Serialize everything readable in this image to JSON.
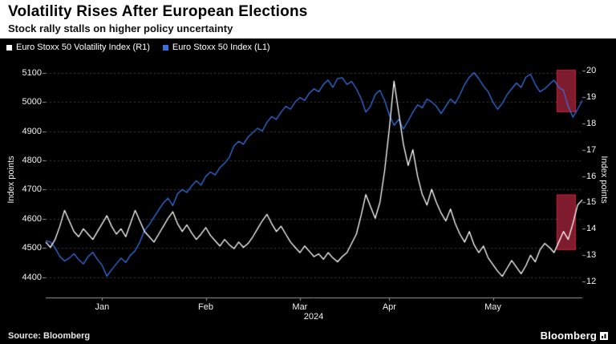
{
  "header": {
    "title": "Volatility Rises After European Elections",
    "subtitle": "Stock rally stalls on higher policy uncertainty"
  },
  "legend": [
    {
      "label": "Euro Stoxx 50 Volatility Index (R1)",
      "color": "#ffffff"
    },
    {
      "label": "Euro Stoxx 50 Index (L1)",
      "color": "#3671e0"
    }
  ],
  "footer": {
    "source": "Source: Bloomberg",
    "logo": "Bloomberg"
  },
  "chart_data": {
    "type": "line",
    "title": "Volatility Rises After European Elections",
    "subtitle": "Stock rally stalls on higher policy uncertainty",
    "x_axis": {
      "year_label": "2024",
      "month_labels": [
        "Jan",
        "Feb",
        "Mar",
        "Apr",
        "May"
      ],
      "month_label_indices": [
        12,
        34,
        54,
        73,
        95
      ]
    },
    "left_axis": {
      "title": "Index points",
      "ticks": [
        4400,
        4500,
        4600,
        4700,
        4800,
        4900,
        5000,
        5100
      ],
      "range": [
        4330,
        5135
      ]
    },
    "right_axis": {
      "title": "Index points",
      "ticks": [
        12,
        13,
        14,
        15,
        16,
        17,
        18,
        19,
        20
      ],
      "range": [
        11.4,
        20.3
      ]
    },
    "grid_color": "#3c3c3c",
    "axis_color": "#9b9b9b",
    "series": [
      {
        "name": "Euro Stoxx 50 Index (L1)",
        "axis": "left",
        "color": "#3671e0",
        "values": [
          4525,
          4520,
          4500,
          4470,
          4455,
          4465,
          4480,
          4460,
          4445,
          4470,
          4485,
          4460,
          4440,
          4403,
          4425,
          4445,
          4465,
          4450,
          4475,
          4490,
          4520,
          4560,
          4580,
          4605,
          4630,
          4654,
          4670,
          4645,
          4685,
          4700,
          4690,
          4712,
          4730,
          4715,
          4745,
          4760,
          4750,
          4775,
          4790,
          4810,
          4850,
          4865,
          4855,
          4880,
          4895,
          4910,
          4900,
          4930,
          4950,
          4940,
          4965,
          4985,
          4975,
          5000,
          5015,
          5005,
          5030,
          5045,
          5035,
          5060,
          5075,
          5050,
          5080,
          5083,
          5060,
          5070,
          5045,
          5012,
          4965,
          4985,
          5025,
          5040,
          5005,
          4955,
          4920,
          4940,
          4907,
          4935,
          4965,
          4990,
          4980,
          5010,
          5000,
          4985,
          4960,
          4985,
          5010,
          4995,
          5025,
          5060,
          5085,
          5100,
          5080,
          5055,
          5035,
          5000,
          4975,
          4995,
          5025,
          5045,
          5065,
          5050,
          5085,
          5095,
          5060,
          5035,
          5045,
          5060,
          5075,
          5050,
          5040,
          4985,
          4948,
          4975,
          5005
        ]
      },
      {
        "name": "Euro Stoxx 50 Volatility Index (R1)",
        "axis": "right",
        "color": "#ffffff",
        "values": [
          13.5,
          13.3,
          13.6,
          14.1,
          14.7,
          14.3,
          13.9,
          13.7,
          14.0,
          13.8,
          13.6,
          13.9,
          14.2,
          14.5,
          14.1,
          13.8,
          14.0,
          13.7,
          14.2,
          14.7,
          14.3,
          13.9,
          13.7,
          13.5,
          13.8,
          14.1,
          14.4,
          14.65,
          14.2,
          13.9,
          14.15,
          13.85,
          13.6,
          13.8,
          14.05,
          13.75,
          13.55,
          13.35,
          13.6,
          13.4,
          13.25,
          13.5,
          13.3,
          13.45,
          13.7,
          14.0,
          14.3,
          14.55,
          14.2,
          13.9,
          14.1,
          13.8,
          13.5,
          13.3,
          13.1,
          13.35,
          13.15,
          12.95,
          13.05,
          12.85,
          13.1,
          12.9,
          12.75,
          12.95,
          13.1,
          13.45,
          13.8,
          14.5,
          15.3,
          14.85,
          14.4,
          15.0,
          16.2,
          17.8,
          19.6,
          18.4,
          17.2,
          16.4,
          17.0,
          16.0,
          15.3,
          14.9,
          15.5,
          15.0,
          14.6,
          14.3,
          14.75,
          14.2,
          13.8,
          13.5,
          13.9,
          13.4,
          13.1,
          13.35,
          12.9,
          12.65,
          12.4,
          12.2,
          12.5,
          12.8,
          12.55,
          12.3,
          12.6,
          13.0,
          12.75,
          13.2,
          13.45,
          13.3,
          13.1,
          13.5,
          13.9,
          13.6,
          14.2,
          14.9,
          15.1
        ]
      }
    ],
    "highlight_boxes": [
      {
        "axis": "left",
        "x0_frac": 0.952,
        "x1_frac": 0.988,
        "y_min": 4965,
        "y_max": 5110,
        "fill": "#7e1b2c",
        "stroke": "#c4203a"
      },
      {
        "axis": "right",
        "x0_frac": 0.952,
        "x1_frac": 0.988,
        "y_min": 13.2,
        "y_max": 15.3,
        "fill": "#7e1b2c",
        "stroke": "#c4203a"
      }
    ]
  }
}
